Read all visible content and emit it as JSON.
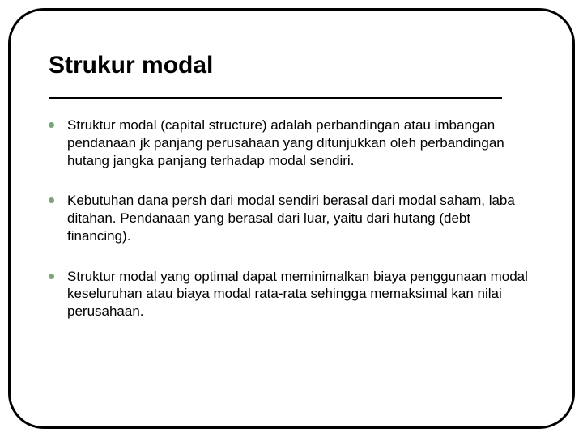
{
  "slide": {
    "title": "Strukur modal",
    "bullets": [
      "Struktur modal (capital structure) adalah perbandingan atau imbangan pendanaan jk panjang perusahaan yang ditunjukkan oleh perbandingan hutang jangka panjang terhadap modal sendiri.",
      "Kebutuhan dana persh dari modal sendiri berasal dari modal saham, laba ditahan. Pendanaan yang berasal dari luar, yaitu dari hutang (debt financing).",
      "Struktur modal yang optimal dapat meminimalkan biaya penggunaan modal keseluruhan atau biaya modal rata-rata sehingga memaksimal kan nilai perusahaan."
    ],
    "style": {
      "frame_border_color": "#000000",
      "frame_border_width": 3,
      "frame_border_radius": 44,
      "background_color": "#ffffff",
      "title_color": "#000000",
      "title_fontsize": 30,
      "title_fontweight": "bold",
      "rule_color": "#000000",
      "rule_width": 560,
      "bullet_dot_color": "#7aa67a",
      "bullet_dot_size": 7,
      "body_fontsize": 17,
      "body_color": "#000000",
      "font_family": "Arial"
    }
  }
}
